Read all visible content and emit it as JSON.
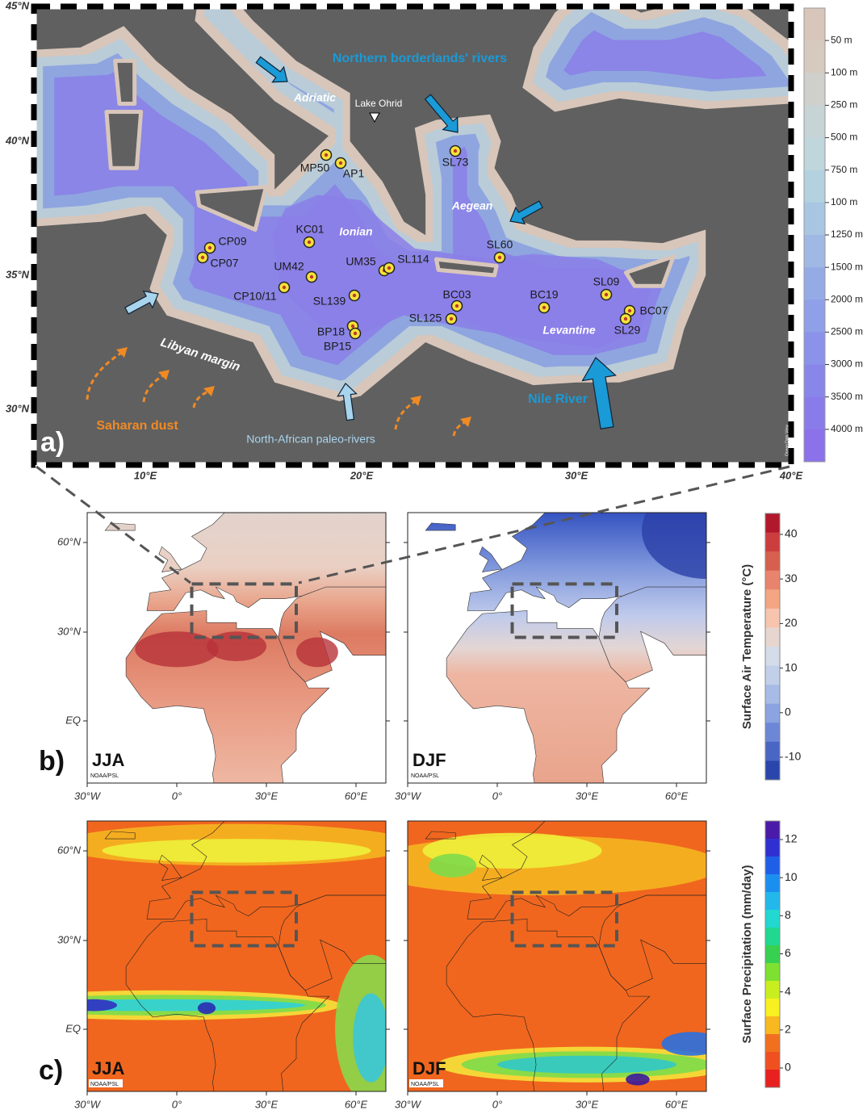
{
  "panel_a": {
    "label": "a)",
    "lat_labels": [
      "45°N",
      "40°N",
      "35°N",
      "30°N"
    ],
    "lon_labels": [
      "10°E",
      "20°E",
      "30°E",
      "40°E"
    ],
    "depth_legend": [
      "50 m",
      "100 m",
      "250 m",
      "500 m",
      "750 m",
      "100 m",
      "1250 m",
      "1500 m",
      "2000 m",
      "2500 m",
      "3000 m",
      "3500 m",
      "4000 m"
    ],
    "credit": "Ocean Data View",
    "annotations": {
      "northern_rivers": "Northern borderlands' rivers",
      "adriatic": "Adriatic",
      "lake_ohrid": "Lake Ohrid",
      "aegean": "Aegean",
      "ionian": "Ionian",
      "levantine": "Levantine",
      "libyan_margin": "Libyan margin",
      "saharan_dust": "Saharan dust",
      "paleo_rivers": "North-African paleo-rivers",
      "nile": "Nile River"
    },
    "sites": [
      "MP50",
      "AP1",
      "SL73",
      "KC01",
      "UM42",
      "CP09",
      "CP07",
      "CP10/11",
      "SL139",
      "UM35",
      "SL114",
      "SL60",
      "BC03",
      "SL125",
      "BC19",
      "SL09",
      "BC07",
      "SL29",
      "BP18",
      "BP15"
    ]
  },
  "panel_b": {
    "label": "b)",
    "maps": [
      "JJA",
      "DJF"
    ],
    "source": "NOAA/PSL",
    "lat_labels": [
      "60°N",
      "30°N",
      "EQ"
    ],
    "lon_labels": [
      "30°W",
      "0°",
      "30°E",
      "60°E"
    ],
    "colorbar_title": "Surface Air Temperature (°C)",
    "colorbar_ticks": [
      40,
      30,
      20,
      10,
      0,
      -10
    ]
  },
  "panel_c": {
    "label": "c)",
    "maps": [
      "JJA",
      "DJF"
    ],
    "source": "NOAA/PSL",
    "lat_labels": [
      "60°N",
      "30°N",
      "EQ"
    ],
    "lon_labels": [
      "30°W",
      "0°",
      "30°E",
      "60°E"
    ],
    "colorbar_title": "Surface Precipitation (mm/day)",
    "colorbar_ticks": [
      12,
      10,
      8,
      6,
      4,
      2,
      0
    ]
  }
}
